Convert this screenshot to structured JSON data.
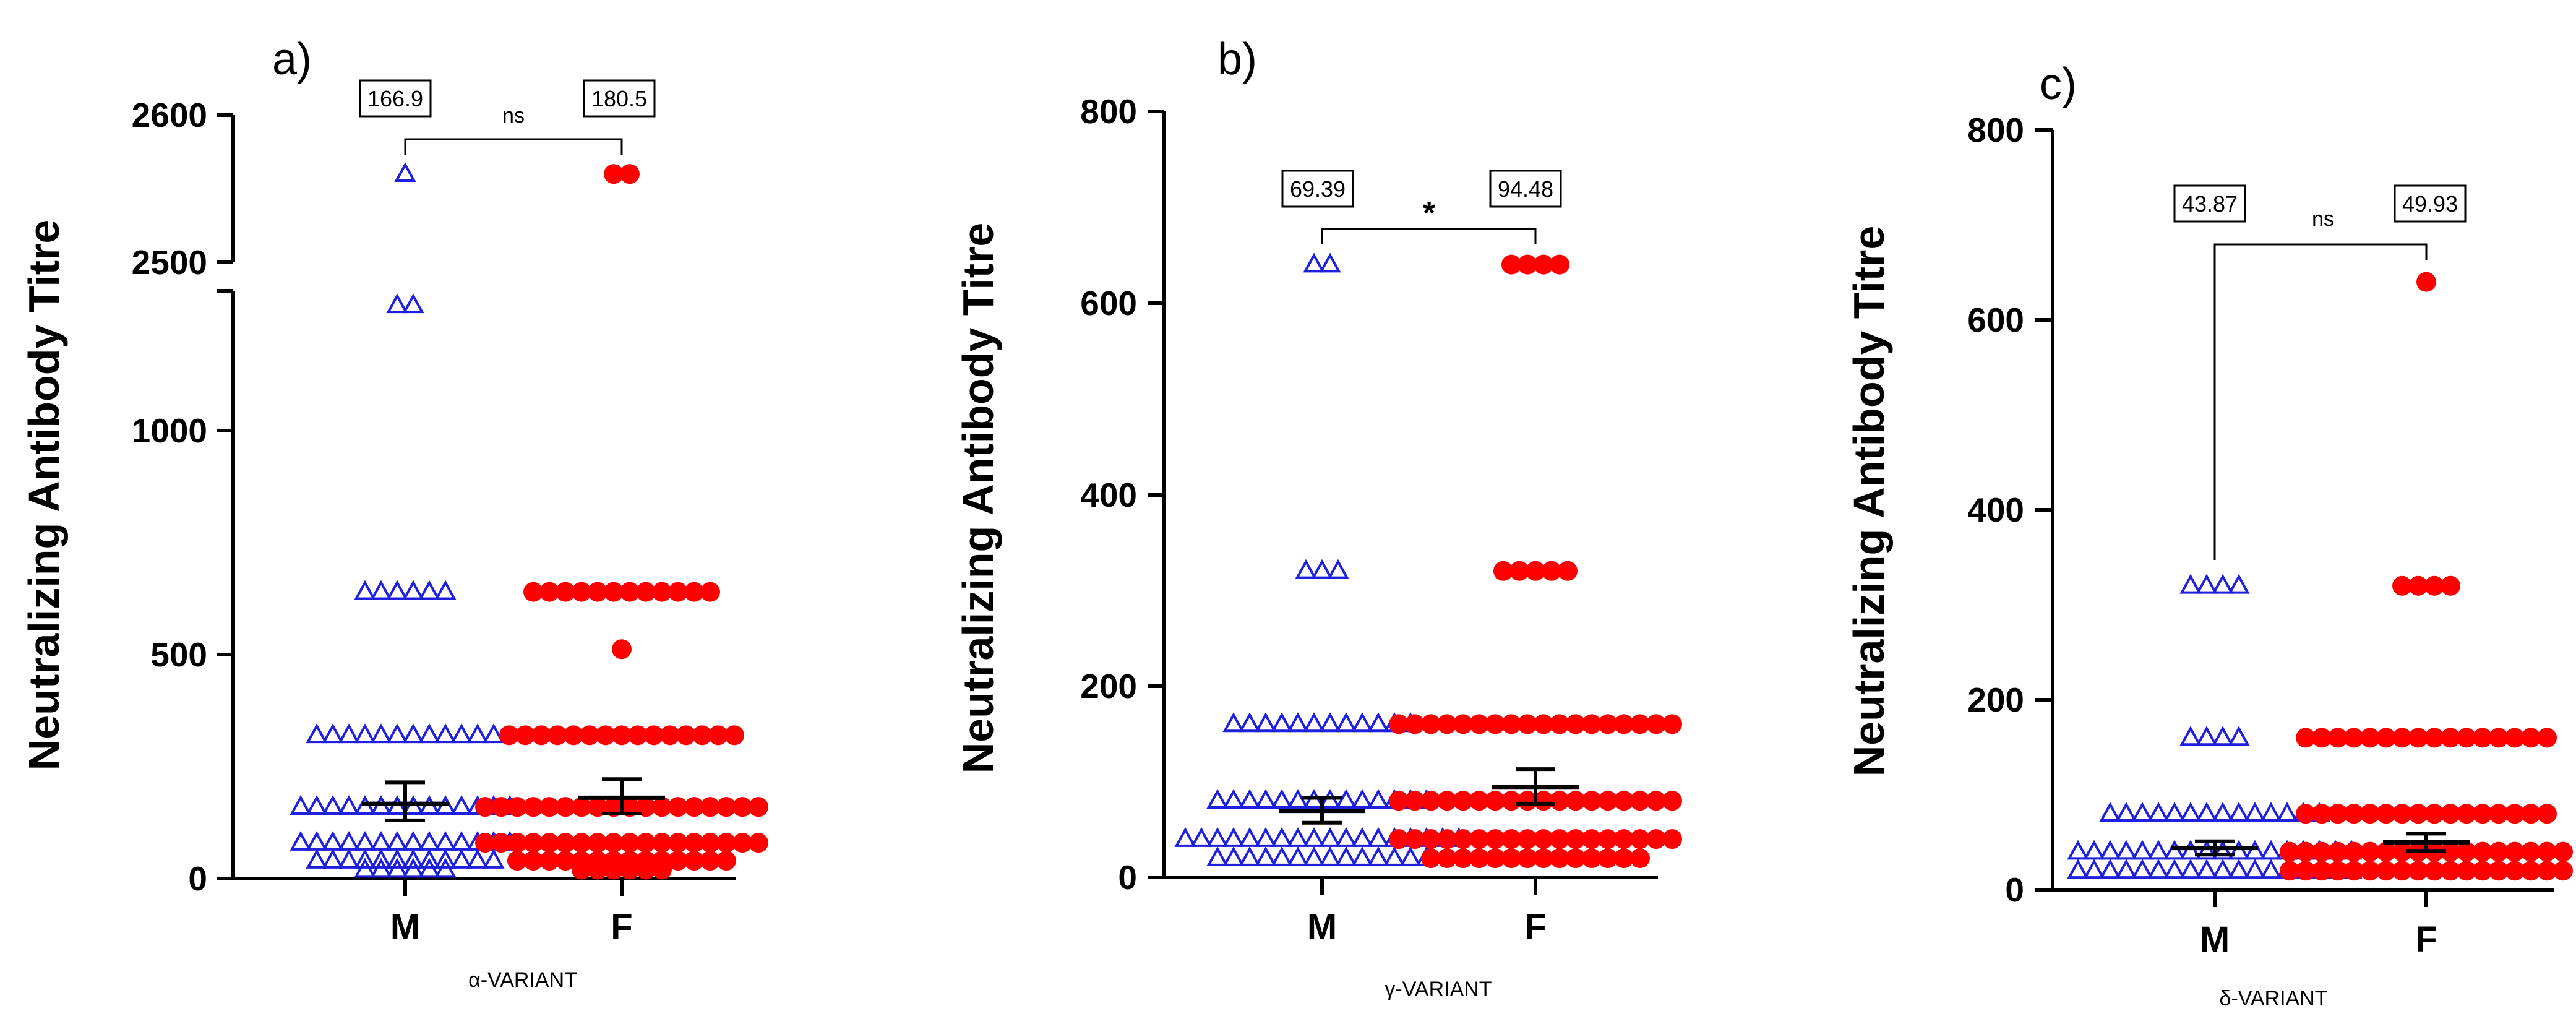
{
  "chart_data": [
    {
      "type": "scatter",
      "panel_label": "a)",
      "ylabel": "Neutralizing Antibody Titre",
      "xlabel": "α-VARIANT",
      "categories": [
        "M",
        "F"
      ],
      "yaxis": {
        "type": "broken",
        "lower_range": [
          0,
          1300
        ],
        "upper_range": [
          2500,
          2600
        ],
        "ticks": [
          0,
          500,
          1000,
          2500,
          2600
        ],
        "tick_labels": [
          "0",
          "500",
          "1000",
          "2500",
          "2600"
        ]
      },
      "series": [
        {
          "name": "M",
          "marker": "open-triangle",
          "color": "#1f1fe0",
          "mean": 166.9,
          "mean_label": "166.9",
          "sem": [
            130,
            215
          ],
          "points": [
            {
              "value": 2560,
              "count": 1
            },
            {
              "value": 1280,
              "count": 2
            },
            {
              "value": 640,
              "count": 6
            },
            {
              "value": 320,
              "count": 12
            },
            {
              "value": 160,
              "count": 14
            },
            {
              "value": 80,
              "count": 14
            },
            {
              "value": 40,
              "count": 12
            },
            {
              "value": 20,
              "count": 6
            }
          ]
        },
        {
          "name": "F",
          "marker": "filled-circle",
          "color": "#ff0000",
          "mean": 180.5,
          "mean_label": "180.5",
          "sem": [
            145,
            222
          ],
          "points": [
            {
              "value": 2560,
              "count": 2
            },
            {
              "value": 640,
              "count": 12
            },
            {
              "value": 512,
              "count": 1
            },
            {
              "value": 320,
              "count": 15
            },
            {
              "value": 160,
              "count": 18
            },
            {
              "value": 80,
              "count": 18
            },
            {
              "value": 40,
              "count": 14
            },
            {
              "value": 20,
              "count": 6
            }
          ]
        }
      ],
      "significance": "ns"
    },
    {
      "type": "scatter",
      "panel_label": "b)",
      "ylabel": "Neutralizing Antibody Titre",
      "xlabel": "γ-VARIANT",
      "categories": [
        "M",
        "F"
      ],
      "yaxis": {
        "type": "linear",
        "range": [
          0,
          800
        ],
        "ticks": [
          0,
          200,
          400,
          600,
          800
        ],
        "tick_labels": [
          "0",
          "200",
          "400",
          "600",
          "800"
        ]
      },
      "series": [
        {
          "name": "M",
          "marker": "open-triangle",
          "color": "#1f1fe0",
          "mean": 69.39,
          "mean_label": "69.39",
          "sem": [
            57,
            83
          ],
          "points": [
            {
              "value": 640,
              "count": 2
            },
            {
              "value": 320,
              "count": 3
            },
            {
              "value": 160,
              "count": 12
            },
            {
              "value": 80,
              "count": 14
            },
            {
              "value": 40,
              "count": 18
            },
            {
              "value": 20,
              "count": 14
            }
          ]
        },
        {
          "name": "F",
          "marker": "filled-circle",
          "color": "#ff0000",
          "mean": 94.48,
          "mean_label": "94.48",
          "sem": [
            77,
            113
          ],
          "points": [
            {
              "value": 640,
              "count": 4
            },
            {
              "value": 320,
              "count": 5
            },
            {
              "value": 160,
              "count": 18
            },
            {
              "value": 80,
              "count": 18
            },
            {
              "value": 40,
              "count": 18
            },
            {
              "value": 20,
              "count": 14
            }
          ]
        }
      ],
      "significance": "*"
    },
    {
      "type": "scatter",
      "panel_label": "c)",
      "ylabel": "Neutralizing Antibody Titre",
      "xlabel": "δ-VARIANT",
      "categories": [
        "M",
        "F"
      ],
      "yaxis": {
        "type": "linear",
        "range": [
          0,
          800
        ],
        "ticks": [
          0,
          200,
          400,
          600,
          800
        ],
        "tick_labels": [
          "0",
          "200",
          "400",
          "600",
          "800"
        ]
      },
      "series": [
        {
          "name": "M",
          "marker": "open-triangle",
          "color": "#1f1fe0",
          "mean": 43.87,
          "mean_label": "43.87",
          "sem": [
            37,
            51
          ],
          "points": [
            {
              "value": 320,
              "count": 4
            },
            {
              "value": 160,
              "count": 4
            },
            {
              "value": 80,
              "count": 14
            },
            {
              "value": 40,
              "count": 18
            },
            {
              "value": 20,
              "count": 18
            }
          ]
        },
        {
          "name": "F",
          "marker": "filled-circle",
          "color": "#ff0000",
          "mean": 49.93,
          "mean_label": "49.93",
          "sem": [
            41,
            59
          ],
          "points": [
            {
              "value": 640,
              "count": 1
            },
            {
              "value": 320,
              "count": 4
            },
            {
              "value": 160,
              "count": 16
            },
            {
              "value": 80,
              "count": 16
            },
            {
              "value": 40,
              "count": 18
            },
            {
              "value": 20,
              "count": 18
            }
          ]
        }
      ],
      "significance": "ns"
    }
  ]
}
